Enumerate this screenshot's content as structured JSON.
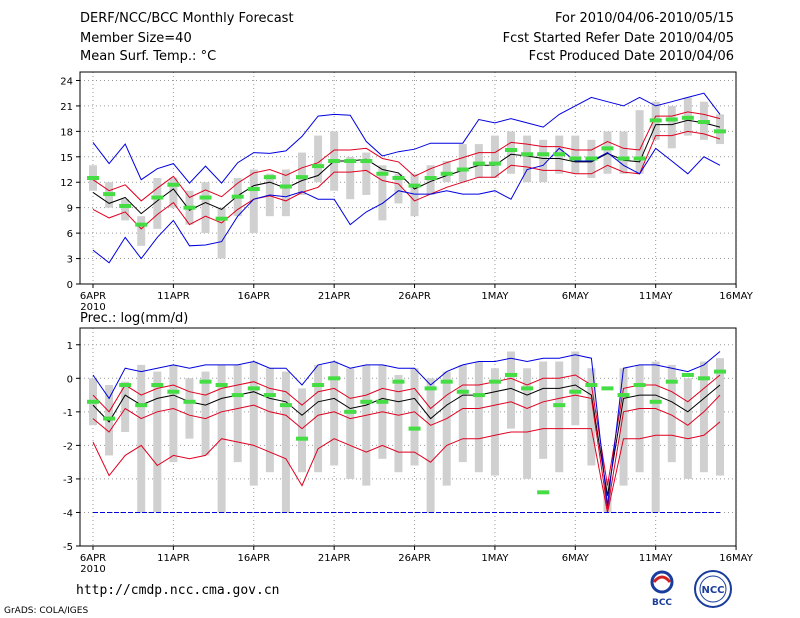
{
  "header": {
    "title": "DERF/NCC/BCC Monthly Forecast",
    "member_size": "Member Size=40",
    "variable": "Mean Surf. Temp.: °C",
    "period": "For 2010/04/06-2010/05/15",
    "started": "Fcst Started Refer Date 2010/04/05",
    "produced": "Fcst Produced Date 2010/04/06"
  },
  "footer": {
    "url": "http://cmdp.ncc.cma.gov.cn",
    "grads": "GrADS: COLA/IGES",
    "logo_bcc": "BCC",
    "logo_ncc": "NCC"
  },
  "colors": {
    "obs_bar": "#d0d0d0",
    "ensemble_mean": "#000000",
    "percentile_band": "#e00020",
    "extreme_envelope": "#0000e0",
    "observed_marker": "#44dd44",
    "grid": "#999999"
  },
  "chart_data": [
    {
      "type": "line",
      "title": "Mean Surf. Temp.: °C",
      "x_ticks": [
        "6APR",
        "11APR",
        "16APR",
        "21APR",
        "26APR",
        "1MAY",
        "6MAY",
        "11MAY",
        "16MAY"
      ],
      "x_sub_label": "2010",
      "ylim": [
        0,
        25
      ],
      "y_ticks": [
        0,
        3,
        6,
        9,
        12,
        15,
        18,
        21,
        24
      ],
      "days": 40,
      "series": [
        {
          "name": "ensemble_mean",
          "values": [
            10.8,
            9.5,
            10.2,
            8.3,
            9.8,
            11.2,
            8.7,
            9.6,
            8.8,
            10.4,
            11.6,
            12.0,
            11.3,
            12.2,
            12.8,
            14.5,
            14.5,
            14.7,
            13.5,
            13.1,
            11.2,
            12.1,
            12.8,
            13.4,
            14.0,
            14.0,
            15.3,
            15.1,
            14.8,
            14.8,
            14.4,
            14.4,
            15.4,
            14.6,
            14.4,
            18.8,
            18.8,
            19.3,
            19.0,
            18.5
          ]
        },
        {
          "name": "upper_percentile",
          "values": [
            12.3,
            11.0,
            11.7,
            9.8,
            11.3,
            12.7,
            10.2,
            11.1,
            10.3,
            11.9,
            13.1,
            13.5,
            12.8,
            13.7,
            14.3,
            15.8,
            15.8,
            16.0,
            14.8,
            14.4,
            12.7,
            13.6,
            14.3,
            14.9,
            15.5,
            15.5,
            16.7,
            16.5,
            16.2,
            16.2,
            15.8,
            15.8,
            16.8,
            16.0,
            15.8,
            19.8,
            19.8,
            20.3,
            20.0,
            19.5
          ]
        },
        {
          "name": "lower_percentile",
          "values": [
            8.8,
            7.8,
            8.5,
            6.5,
            8.2,
            9.6,
            7.0,
            8.0,
            7.2,
            8.8,
            10.0,
            10.4,
            9.8,
            10.8,
            11.4,
            13.2,
            13.2,
            13.4,
            12.2,
            11.8,
            9.8,
            10.6,
            11.4,
            12.0,
            12.6,
            12.6,
            14.0,
            13.8,
            13.4,
            13.4,
            13.0,
            13.0,
            14.0,
            13.2,
            13.0,
            17.5,
            17.5,
            18.0,
            17.7,
            17.1
          ]
        },
        {
          "name": "max_member",
          "values": [
            16.7,
            14.2,
            16.5,
            12.3,
            13.6,
            14.2,
            11.9,
            13.9,
            11.9,
            14.3,
            15.5,
            15.4,
            15.7,
            17.4,
            19.8,
            20.0,
            19.9,
            16.8,
            15.1,
            15.6,
            15.9,
            16.6,
            16.6,
            16.6,
            19.4,
            19.0,
            19.5,
            19.0,
            18.5,
            20.0,
            21.0,
            22.0,
            21.5,
            21.0,
            22.0,
            21.0,
            21.5,
            22.0,
            22.5,
            20.0
          ]
        },
        {
          "name": "min_member",
          "values": [
            4.0,
            2.5,
            5.5,
            3.0,
            5.5,
            7.5,
            4.5,
            4.6,
            5.0,
            8.0,
            10.0,
            10.5,
            10.3,
            10.9,
            10.0,
            10.0,
            7.0,
            8.5,
            9.5,
            11.0,
            10.6,
            10.6,
            11.0,
            10.6,
            10.6,
            11.0,
            10.0,
            13.5,
            14.0,
            16.0,
            14.5,
            14.5,
            15.5,
            14.0,
            13.0,
            16.0,
            14.5,
            13.0,
            15.0,
            14.0
          ]
        }
      ],
      "observed_bars": {
        "lower": [
          11.0,
          9.0,
          7.5,
          4.5,
          6.5,
          9.0,
          7.0,
          6.0,
          3.0,
          8.0,
          6.0,
          8.0,
          8.0,
          10.5,
          12.0,
          11.0,
          10.0,
          10.5,
          7.5,
          9.5,
          8.0,
          10.5,
          12.0,
          12.0,
          12.5,
          12.5,
          13.0,
          12.0,
          12.0,
          13.0,
          13.0,
          12.5,
          13.0,
          13.0,
          13.0,
          17.0,
          16.0,
          17.5,
          17.0,
          16.5
        ],
        "upper": [
          14.0,
          12.0,
          10.0,
          8.0,
          12.5,
          12.5,
          11.0,
          12.0,
          9.0,
          12.5,
          13.5,
          13.0,
          13.5,
          15.5,
          17.5,
          18.0,
          15.0,
          15.5,
          14.0,
          13.0,
          13.0,
          14.0,
          14.5,
          16.5,
          16.5,
          17.5,
          18.0,
          17.5,
          17.0,
          17.5,
          17.5,
          17.0,
          18.0,
          18.0,
          20.5,
          21.5,
          21.0,
          22.0,
          21.5,
          20.0
        ]
      },
      "observed_markers": [
        12.5,
        10.6,
        9.2,
        7.0,
        10.2,
        11.7,
        9.0,
        10.2,
        7.7,
        10.3,
        11.2,
        12.6,
        11.5,
        12.6,
        13.9,
        14.5,
        14.5,
        14.5,
        13.0,
        12.5,
        11.6,
        12.5,
        13.0,
        13.5,
        14.2,
        14.2,
        15.8,
        15.3,
        15.3,
        15.3,
        14.8,
        14.8,
        16.0,
        14.8,
        14.8,
        19.3,
        19.4,
        19.6,
        19.1,
        18.0
      ]
    },
    {
      "type": "line",
      "title": "Prec.: log(mm/d)",
      "x_ticks": [
        "6APR",
        "11APR",
        "16APR",
        "21APR",
        "26APR",
        "1MAY",
        "6MAY",
        "11MAY",
        "16MAY"
      ],
      "x_sub_label": "2010",
      "ylim": [
        -5,
        1.5
      ],
      "y_ticks": [
        -5,
        -4,
        -3,
        -2,
        -1,
        0,
        1
      ],
      "days": 40,
      "series": [
        {
          "name": "ensemble_mean",
          "values": [
            -0.8,
            -1.3,
            -0.5,
            -0.8,
            -0.6,
            -0.5,
            -0.7,
            -0.8,
            -0.6,
            -0.5,
            -0.4,
            -0.6,
            -0.7,
            -1.1,
            -0.7,
            -0.6,
            -0.9,
            -0.8,
            -0.6,
            -0.7,
            -0.6,
            -1.2,
            -0.8,
            -0.5,
            -0.5,
            -0.4,
            -0.3,
            -0.5,
            -0.3,
            -0.3,
            -0.2,
            -0.5,
            -3.5,
            -0.6,
            -0.5,
            -0.5,
            -0.7,
            -1.0,
            -0.6,
            -0.2
          ]
        },
        {
          "name": "upper_percentile",
          "values": [
            -0.5,
            -1.0,
            -0.2,
            -0.5,
            -0.3,
            -0.2,
            -0.4,
            -0.5,
            -0.3,
            -0.2,
            -0.1,
            -0.3,
            -0.4,
            -0.8,
            -0.4,
            -0.3,
            -0.6,
            -0.5,
            -0.3,
            -0.4,
            -0.3,
            -0.9,
            -0.5,
            -0.2,
            -0.2,
            -0.1,
            0.0,
            -0.2,
            0.0,
            0.0,
            0.1,
            -0.2,
            -3.2,
            -0.3,
            -0.2,
            -0.2,
            -0.4,
            -0.7,
            -0.3,
            0.1
          ]
        },
        {
          "name": "lower_percentile",
          "values": [
            -1.2,
            -1.6,
            -0.9,
            -1.2,
            -1.0,
            -0.9,
            -1.1,
            -1.2,
            -1.0,
            -0.9,
            -0.8,
            -1.0,
            -1.1,
            -1.5,
            -1.1,
            -1.0,
            -1.2,
            -1.1,
            -1.0,
            -1.1,
            -1.0,
            -1.4,
            -1.2,
            -0.9,
            -0.9,
            -0.8,
            -0.7,
            -0.9,
            -0.7,
            -0.6,
            -0.5,
            -0.6,
            -3.9,
            -1.0,
            -0.9,
            -0.9,
            -1.1,
            -1.4,
            -1.0,
            -0.5
          ]
        },
        {
          "name": "lower_band",
          "values": [
            -1.9,
            -2.9,
            -2.3,
            -2.0,
            -2.6,
            -2.3,
            -2.4,
            -2.3,
            -1.8,
            -1.9,
            -2.0,
            -2.2,
            -2.4,
            -3.2,
            -2.1,
            -1.8,
            -2.0,
            -2.2,
            -2.0,
            -2.2,
            -2.2,
            -2.5,
            -2.0,
            -1.8,
            -1.8,
            -1.7,
            -1.6,
            -1.6,
            -1.5,
            -1.5,
            -1.5,
            -1.5,
            -4.0,
            -1.8,
            -1.8,
            -1.7,
            -1.7,
            -1.8,
            -1.7,
            -1.3
          ]
        },
        {
          "name": "max_member",
          "values": [
            0.1,
            -0.6,
            0.3,
            0.2,
            0.3,
            0.4,
            0.3,
            0.4,
            0.4,
            0.4,
            0.5,
            0.3,
            0.3,
            -0.2,
            0.4,
            0.5,
            0.3,
            0.4,
            0.4,
            0.3,
            0.3,
            -0.2,
            0.2,
            0.4,
            0.5,
            0.5,
            0.6,
            0.5,
            0.6,
            0.6,
            0.7,
            0.6,
            -3.8,
            0.3,
            0.4,
            0.4,
            0.3,
            0.2,
            0.4,
            0.8
          ]
        },
        {
          "name": "min_member",
          "values": [
            -4.0,
            -4.0,
            -4.0,
            -4.0,
            -4.0,
            -4.0,
            -4.0,
            -4.0,
            -4.0,
            -4.0,
            -4.0,
            -4.0,
            -4.0,
            -4.0,
            -4.0,
            -4.0,
            -4.0,
            -4.0,
            -4.0,
            -4.0,
            -4.0,
            -4.0,
            -4.0,
            -4.0,
            -4.0,
            -4.0,
            -4.0,
            -4.0,
            -4.0,
            -4.0,
            -4.0,
            -4.0,
            -4.0,
            -4.0,
            -4.0,
            -4.0,
            -4.0,
            -4.0,
            -4.0,
            -4.0
          ]
        }
      ],
      "observed_bars": {
        "lower": [
          -1.4,
          -2.3,
          -1.6,
          -4.0,
          -4.0,
          -2.5,
          -1.8,
          -2.3,
          -4.0,
          -2.5,
          -3.2,
          -2.8,
          -4.0,
          -2.8,
          -2.8,
          -2.6,
          -3.0,
          -3.2,
          -2.4,
          -2.8,
          -2.6,
          -4.0,
          -3.2,
          -2.5,
          -2.8,
          -2.9,
          -1.5,
          -3.0,
          -2.4,
          -2.8,
          -1.4,
          -2.6,
          -4.0,
          -3.2,
          -2.8,
          -4.0,
          -2.5,
          -3.0,
          -2.8,
          -2.9
        ],
        "upper": [
          0.0,
          -0.2,
          -0.1,
          0.4,
          0.2,
          0.4,
          0.0,
          0.2,
          0.4,
          0.4,
          0.5,
          0.3,
          0.2,
          -0.3,
          0.4,
          0.5,
          0.3,
          0.4,
          0.4,
          0.1,
          0.3,
          0.0,
          0.2,
          0.4,
          0.5,
          0.3,
          0.8,
          0.3,
          0.5,
          0.5,
          0.8,
          0.3,
          -3.0,
          0.3,
          0.4,
          0.5,
          0.4,
          0.0,
          0.5,
          0.6
        ]
      },
      "observed_markers": [
        -0.7,
        -1.2,
        -0.2,
        -0.8,
        -0.2,
        -0.4,
        -0.7,
        -0.1,
        -0.2,
        -0.5,
        -0.3,
        -0.5,
        -0.8,
        -1.8,
        -0.2,
        0.0,
        -1.0,
        -0.7,
        -0.7,
        -0.1,
        -1.5,
        -0.3,
        -0.1,
        -0.4,
        -0.5,
        -0.1,
        0.1,
        -0.3,
        -3.4,
        -0.8,
        -0.4,
        -0.2,
        -0.3,
        -0.5,
        -0.2,
        -0.7,
        -0.1,
        0.1,
        0.0,
        0.2
      ]
    }
  ]
}
